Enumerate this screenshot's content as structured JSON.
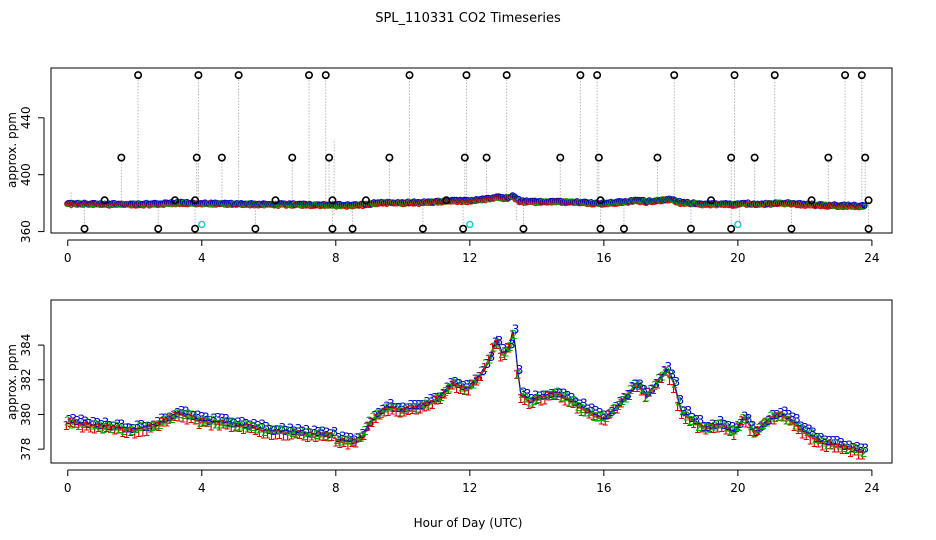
{
  "title": "SPL_110331  CO2 Timeseries",
  "xlabel": "Hour of Day (UTC)",
  "chart_data": [
    {
      "type": "scatter",
      "name": "upper",
      "ylabel": "approx. ppm",
      "xlim": [
        -0.5,
        24.6
      ],
      "ylim": [
        359,
        475
      ],
      "xticks": [
        "0",
        "4",
        "8",
        "12",
        "16",
        "20",
        "24"
      ],
      "yticks": [
        "360",
        "400",
        "440"
      ],
      "ytick_values": [
        360,
        400,
        440
      ],
      "outliers_high": [
        [
          1.1,
          382
        ],
        [
          1.6,
          412
        ],
        [
          2.1,
          470
        ],
        [
          3.2,
          382
        ],
        [
          3.8,
          382
        ],
        [
          3.85,
          412
        ],
        [
          3.9,
          470
        ],
        [
          4.6,
          412
        ],
        [
          5.1,
          470
        ],
        [
          6.2,
          382
        ],
        [
          6.7,
          412
        ],
        [
          7.2,
          470
        ],
        [
          7.7,
          470
        ],
        [
          7.8,
          412
        ],
        [
          7.9,
          382
        ],
        [
          8.9,
          382
        ],
        [
          9.6,
          412
        ],
        [
          10.2,
          470
        ],
        [
          11.3,
          382
        ],
        [
          11.85,
          412
        ],
        [
          11.9,
          470
        ],
        [
          12.5,
          412
        ],
        [
          13.1,
          470
        ],
        [
          14.7,
          412
        ],
        [
          15.3,
          470
        ],
        [
          15.8,
          470
        ],
        [
          15.85,
          412
        ],
        [
          15.9,
          382
        ],
        [
          17.6,
          412
        ],
        [
          18.1,
          470
        ],
        [
          19.2,
          382
        ],
        [
          19.8,
          412
        ],
        [
          19.9,
          470
        ],
        [
          20.5,
          412
        ],
        [
          21.1,
          470
        ],
        [
          22.2,
          382
        ],
        [
          22.7,
          412
        ],
        [
          23.2,
          470
        ],
        [
          23.7,
          470
        ],
        [
          23.8,
          412
        ],
        [
          23.9,
          382
        ]
      ],
      "outliers_low": [
        [
          0.5,
          362
        ],
        [
          2.7,
          362
        ],
        [
          3.8,
          362
        ],
        [
          5.6,
          362
        ],
        [
          7.9,
          362
        ],
        [
          8.5,
          362
        ],
        [
          10.6,
          362
        ],
        [
          11.8,
          362
        ],
        [
          13.6,
          362
        ],
        [
          15.9,
          362
        ],
        [
          16.6,
          362
        ],
        [
          18.6,
          362
        ],
        [
          19.8,
          362
        ],
        [
          21.6,
          362
        ],
        [
          23.9,
          362
        ]
      ],
      "cyan_points": [
        [
          4.0,
          365
        ],
        [
          12.0,
          365
        ],
        [
          20.0,
          365
        ]
      ]
    },
    {
      "type": "scatter",
      "name": "lower",
      "ylabel": "approx. ppm",
      "xlim": [
        -0.5,
        24.6
      ],
      "ylim": [
        377.2,
        386.6
      ],
      "xticks": [
        "0",
        "4",
        "8",
        "12",
        "16",
        "20",
        "24"
      ],
      "yticks": [
        "378",
        "380",
        "382",
        "384"
      ],
      "ytick_values": [
        378,
        380,
        382,
        384
      ],
      "series_colors": {
        "1": "#e00000",
        "2": "#00b000",
        "3": "#0000cc"
      },
      "series_labels": [
        "1",
        "2",
        "3"
      ],
      "profile": [
        [
          0.0,
          379.6
        ],
        [
          0.5,
          379.4
        ],
        [
          1.0,
          379.3
        ],
        [
          1.5,
          379.2
        ],
        [
          2.0,
          379.1
        ],
        [
          2.5,
          379.3
        ],
        [
          3.0,
          379.7
        ],
        [
          3.3,
          380.1
        ],
        [
          3.6,
          379.9
        ],
        [
          4.0,
          379.6
        ],
        [
          4.5,
          379.5
        ],
        [
          5.0,
          379.4
        ],
        [
          5.5,
          379.3
        ],
        [
          6.0,
          379.0
        ],
        [
          6.5,
          379.0
        ],
        [
          7.0,
          378.9
        ],
        [
          7.5,
          378.8
        ],
        [
          7.95,
          378.8
        ],
        [
          8.0,
          378.5
        ],
        [
          8.5,
          378.4
        ],
        [
          8.8,
          378.7
        ],
        [
          9.0,
          379.5
        ],
        [
          9.5,
          380.4
        ],
        [
          10.0,
          380.2
        ],
        [
          10.5,
          380.4
        ],
        [
          11.0,
          380.8
        ],
        [
          11.5,
          381.8
        ],
        [
          11.9,
          381.4
        ],
        [
          12.3,
          382.2
        ],
        [
          12.6,
          383.2
        ],
        [
          12.8,
          384.4
        ],
        [
          13.0,
          383.3
        ],
        [
          13.2,
          384.0
        ],
        [
          13.3,
          385.0
        ],
        [
          13.5,
          381.2
        ],
        [
          13.8,
          380.8
        ],
        [
          14.2,
          381.0
        ],
        [
          14.6,
          381.2
        ],
        [
          15.0,
          380.8
        ],
        [
          15.5,
          380.2
        ],
        [
          16.0,
          379.7
        ],
        [
          16.5,
          380.6
        ],
        [
          17.0,
          381.8
        ],
        [
          17.3,
          381.0
        ],
        [
          17.6,
          381.9
        ],
        [
          17.9,
          382.6
        ],
        [
          18.1,
          381.8
        ],
        [
          18.3,
          380.2
        ],
        [
          18.7,
          379.6
        ],
        [
          19.0,
          379.2
        ],
        [
          19.5,
          379.4
        ],
        [
          19.9,
          378.9
        ],
        [
          20.2,
          379.9
        ],
        [
          20.5,
          378.9
        ],
        [
          21.0,
          379.8
        ],
        [
          21.3,
          380.0
        ],
        [
          21.7,
          379.5
        ],
        [
          22.0,
          379.0
        ],
        [
          22.5,
          378.4
        ],
        [
          23.0,
          378.2
        ],
        [
          23.5,
          378.0
        ],
        [
          23.8,
          377.8
        ]
      ]
    }
  ]
}
